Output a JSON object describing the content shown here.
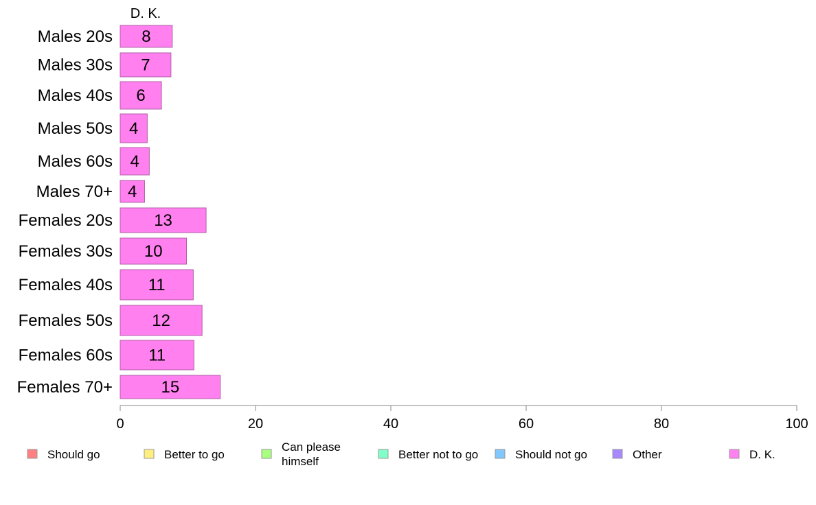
{
  "chart_data": {
    "type": "bar",
    "orientation": "horizontal",
    "stacked": true,
    "series_label": "D. K.",
    "categories": [
      "Males 20s",
      "Males 30s",
      "Males 40s",
      "Males 50s",
      "Males 60s",
      "Males 70+",
      "Females 20s",
      "Females 30s",
      "Females 40s",
      "Females 50s",
      "Females 60s",
      "Females 70+"
    ],
    "values": [
      7.7,
      7.5,
      6.1,
      4.0,
      4.3,
      3.6,
      12.7,
      9.8,
      10.8,
      12.1,
      10.9,
      14.8
    ],
    "value_labels": [
      "8",
      "7",
      "6",
      "4",
      "4",
      "4",
      "13",
      "10",
      "11",
      "12",
      "11",
      "15"
    ],
    "bar_color": "#FF80EE",
    "bar_border": "#B060A8",
    "xlim": [
      0,
      100
    ],
    "xticks": [
      0,
      20,
      40,
      60,
      80,
      100
    ],
    "grid": false,
    "legend_position": "bottom",
    "legend": [
      {
        "label": "Should go",
        "color": "#FF8080"
      },
      {
        "label": "Better to go",
        "color": "#FFEE80"
      },
      {
        "label": "Can please himself",
        "color": "#A8FF80"
      },
      {
        "label": "Better not to go",
        "color": "#80FFC8"
      },
      {
        "label": "Should not go",
        "color": "#80C8FF"
      },
      {
        "label": "Other",
        "color": "#A888FF"
      },
      {
        "label": "D. K.",
        "color": "#FF80EE"
      }
    ]
  }
}
